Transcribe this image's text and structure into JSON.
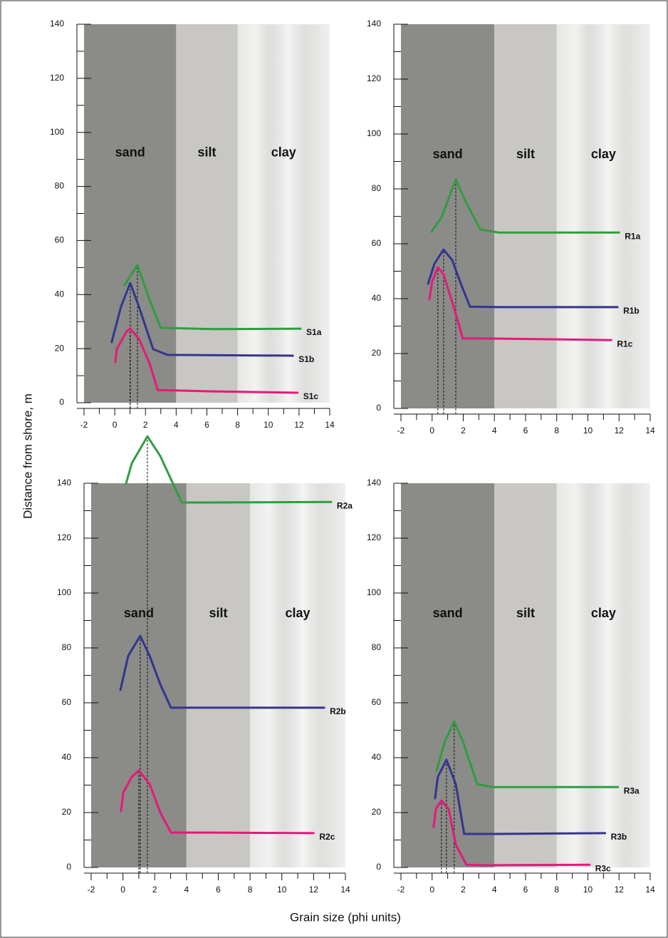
{
  "axis_labels": {
    "y": "Distance from shore, m",
    "x": "Grain size  (phi units)"
  },
  "chart_data": [
    {
      "type": "line",
      "xlim": [
        -2,
        14
      ],
      "ylim": [
        0,
        140
      ],
      "xticks": [
        -2,
        0,
        2,
        4,
        6,
        8,
        10,
        12,
        14
      ],
      "yticks": [
        0,
        20,
        40,
        60,
        80,
        100,
        120,
        140
      ],
      "zones": [
        {
          "label": "sand",
          "range": [
            -2,
            4
          ],
          "color": "#8b8b88"
        },
        {
          "label": "silt",
          "range": [
            4,
            8
          ],
          "color": "#c8c7c3"
        },
        {
          "label": "clay",
          "range": [
            8,
            14
          ],
          "color": "#e6e6e4"
        }
      ],
      "series": [
        {
          "name": "S1a",
          "color": "#2e9e3e",
          "x": [
            0.64,
            1.48,
            2.27,
            3.0,
            6.4,
            12.1
          ],
          "values": [
            43.5,
            51,
            38,
            27.7,
            27.2,
            27.4
          ]
        },
        {
          "name": "S1b",
          "color": "#33358f",
          "x": [
            -0.2,
            0.41,
            1.01,
            1.57,
            2.5,
            3.43,
            11.6
          ],
          "values": [
            22.4,
            35.6,
            44.3,
            35.6,
            19.8,
            17.7,
            17.4
          ]
        },
        {
          "name": "S1c",
          "color": "#e5197a",
          "x": [
            0.04,
            0.13,
            0.78,
            1.0,
            1.57,
            2.27,
            2.8,
            6.4,
            11.9
          ],
          "values": [
            15,
            19.8,
            26.4,
            27.4,
            23.7,
            14.5,
            4.7,
            4.2,
            3.7
          ]
        }
      ]
    },
    {
      "type": "line",
      "xlim": [
        -2,
        14
      ],
      "ylim": [
        0,
        140
      ],
      "xticks": [
        -2,
        0,
        2,
        4,
        6,
        8,
        10,
        12,
        14
      ],
      "yticks": [
        0,
        20,
        40,
        60,
        80,
        100,
        120,
        140
      ],
      "zones": [
        {
          "label": "sand",
          "range": [
            -2,
            4
          ],
          "color": "#8b8b88"
        },
        {
          "label": "silt",
          "range": [
            4,
            8
          ],
          "color": "#c8c7c3"
        },
        {
          "label": "clay",
          "range": [
            8,
            14
          ],
          "color": "#e6e6e4"
        }
      ],
      "series": [
        {
          "name": "R1a",
          "color": "#2e9e3e",
          "x": [
            -0.04,
            0.6,
            1.52,
            2.2,
            3.1,
            4.26,
            12.0
          ],
          "values": [
            64.4,
            69.6,
            83.4,
            74.8,
            65.2,
            64.1,
            64.1
          ]
        },
        {
          "name": "R1b",
          "color": "#33358f",
          "x": [
            -0.26,
            0.15,
            0.74,
            1.29,
            1.88,
            2.43,
            4.26,
            11.9
          ],
          "values": [
            45.4,
            52.7,
            57.9,
            54,
            44.9,
            37.1,
            36.9,
            36.9
          ]
        },
        {
          "name": "R1c",
          "color": "#e5197a",
          "x": [
            -0.17,
            0,
            0.37,
            0.74,
            1.52,
            1.97,
            2.89,
            11.5
          ],
          "values": [
            39.7,
            46.2,
            51.4,
            48.8,
            34.5,
            25.5,
            25.5,
            24.9
          ]
        }
      ]
    },
    {
      "type": "line",
      "xlim": [
        -2,
        14
      ],
      "ylim": [
        0,
        140
      ],
      "xticks": [
        -2,
        0,
        2,
        4,
        6,
        8,
        10,
        12,
        14
      ],
      "yticks": [
        0,
        20,
        40,
        60,
        80,
        100,
        120,
        140
      ],
      "zones": [
        {
          "label": "sand",
          "range": [
            -2,
            4
          ],
          "color": "#8b8b88"
        },
        {
          "label": "silt",
          "range": [
            4,
            8
          ],
          "color": "#c8c7c3"
        },
        {
          "label": "clay",
          "range": [
            8,
            14
          ],
          "color": "#e6e6e4"
        }
      ],
      "series": [
        {
          "name": "R2a",
          "color": "#2e9e3e",
          "x": [
            0.2,
            0.56,
            1.54,
            2.35,
            3.7,
            5.26,
            13.1
          ],
          "values": [
            140,
            147.3,
            157.1,
            149.9,
            133,
            133,
            133.2
          ]
        },
        {
          "name": "R2b",
          "color": "#33358f",
          "x": [
            -0.16,
            0.33,
            1.09,
            1.68,
            2.35,
            3.02,
            5.71,
            12.66
          ],
          "values": [
            64.7,
            77.1,
            84.4,
            77.1,
            66.7,
            58.2,
            58.2,
            58.2
          ]
        },
        {
          "name": "R2c",
          "color": "#e5197a",
          "x": [
            -0.12,
            0.02,
            0.56,
            1.0,
            1.68,
            2.35,
            3.02,
            5.71,
            12.0
          ],
          "values": [
            20.5,
            27.3,
            33,
            35.3,
            30.4,
            20,
            12.7,
            12.7,
            12.5
          ]
        }
      ]
    },
    {
      "type": "line",
      "xlim": [
        -2,
        14
      ],
      "ylim": [
        0,
        140
      ],
      "xticks": [
        -2,
        0,
        2,
        4,
        6,
        8,
        10,
        12,
        14
      ],
      "yticks": [
        0,
        20,
        40,
        60,
        80,
        100,
        120,
        140
      ],
      "zones": [
        {
          "label": "sand",
          "range": [
            -2,
            4
          ],
          "color": "#8b8b88"
        },
        {
          "label": "silt",
          "range": [
            4,
            8
          ],
          "color": "#c8c7c3"
        },
        {
          "label": "clay",
          "range": [
            8,
            14
          ],
          "color": "#e6e6e4"
        }
      ],
      "series": [
        {
          "name": "R3a",
          "color": "#2e9e3e",
          "x": [
            0.28,
            0.83,
            1.42,
            1.97,
            2.89,
            3.8,
            11.93
          ],
          "values": [
            35.1,
            46,
            53.2,
            46,
            30.4,
            29.3,
            29.3
          ]
        },
        {
          "name": "R3b",
          "color": "#33358f",
          "x": [
            0.19,
            0.37,
            0.92,
            1.52,
            2.06,
            4.26,
            11.1
          ],
          "values": [
            25.2,
            33,
            39.2,
            30.4,
            12.2,
            12.2,
            12.5
          ]
        },
        {
          "name": "R3c",
          "color": "#e5197a",
          "x": [
            0.1,
            0.24,
            0.6,
            1.06,
            1.52,
            2.2,
            3.34,
            10.1
          ],
          "values": [
            14.8,
            21.3,
            24.4,
            21.3,
            8.3,
            1,
            0.8,
            1
          ]
        }
      ]
    }
  ]
}
